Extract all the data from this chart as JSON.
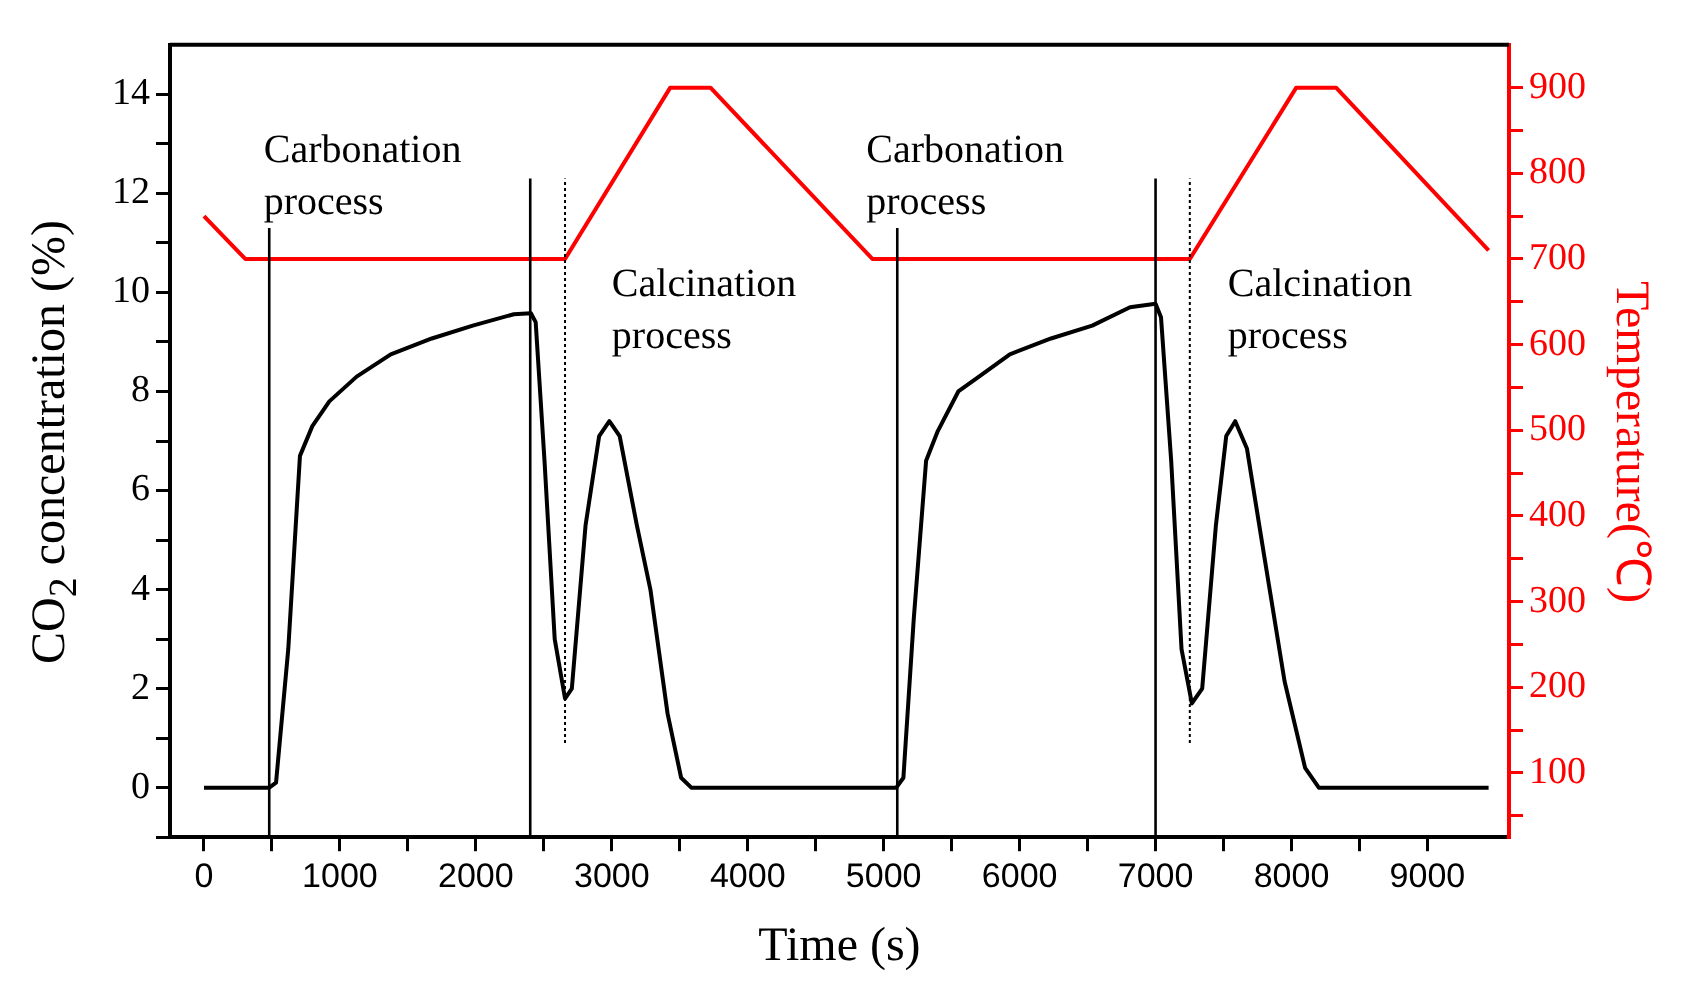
{
  "chart_data": {
    "type": "line",
    "xlabel": "Time (s)",
    "ylabel": "CO$_{2}$ concentration (%)",
    "y2label": "Temperature(℃)",
    "xlim": [
      -250,
      9600
    ],
    "xticks": [
      0,
      {
        "value": 500,
        "label": null
      },
      1000,
      {
        "value": 1500,
        "label": null
      },
      2000,
      {
        "value": 2500,
        "label": null
      },
      3000,
      {
        "value": 3500,
        "label": null
      },
      4000,
      {
        "value": 4500,
        "label": null
      },
      5000,
      {
        "value": 5500,
        "label": null
      },
      6000,
      {
        "value": 6500,
        "label": null
      },
      7000,
      {
        "value": 7500,
        "label": null
      },
      8000,
      {
        "value": 8500,
        "label": null
      },
      9000
    ],
    "ylim": [
      -1,
      15
    ],
    "yticks": [
      {
        "value": -1,
        "label": null
      },
      0,
      {
        "value": 1,
        "label": null
      },
      2,
      {
        "value": 3,
        "label": null
      },
      4,
      {
        "value": 5,
        "label": null
      },
      6,
      {
        "value": 7,
        "label": null
      },
      8,
      {
        "value": 9,
        "label": null
      },
      10,
      {
        "value": 11,
        "label": null
      },
      12,
      {
        "value": 13,
        "label": null
      },
      14
    ],
    "y2lim": [
      25,
      950
    ],
    "y2ticks": [
      {
        "value": 50,
        "label": null
      },
      100,
      {
        "value": 150,
        "label": null
      },
      200,
      {
        "value": 250,
        "label": null
      },
      300,
      {
        "value": 350,
        "label": null
      },
      400,
      {
        "value": 450,
        "label": null
      },
      500,
      {
        "value": 550,
        "label": null
      },
      600,
      {
        "value": 650,
        "label": null
      },
      700,
      {
        "value": 750,
        "label": null
      },
      800,
      {
        "value": 850,
        "label": null
      },
      900
    ],
    "series": [
      {
        "color": "#000000",
        "x": [
          0,
          480,
          530,
          620,
          706,
          797,
          922,
          1123,
          1374,
          1676,
          1977,
          2279,
          2405,
          2440,
          2505,
          2580,
          2656,
          2706,
          2807,
          2907,
          2982,
          3058,
          3184,
          3284,
          3410,
          3510,
          3585,
          5093,
          5145,
          5221,
          5312,
          5398,
          5549,
          5701,
          5928,
          6231,
          6534,
          6812,
          7000,
          7040,
          7115,
          7191,
          7267,
          7343,
          7444,
          7520,
          7586,
          7672,
          7798,
          7949,
          8100,
          8201,
          9450
        ],
        "values": [
          0,
          0,
          0.1,
          2.8,
          6.7,
          7.3,
          7.8,
          8.3,
          8.75,
          9.07,
          9.33,
          9.56,
          9.58,
          9.4,
          6.6,
          3.0,
          1.8,
          2.0,
          5.3,
          7.1,
          7.4,
          7.1,
          5.3,
          4.0,
          1.5,
          0.2,
          0,
          0,
          0.2,
          3.4,
          6.6,
          7.2,
          8.0,
          8.3,
          8.75,
          9.07,
          9.33,
          9.7,
          9.77,
          9.5,
          6.6,
          2.8,
          1.7,
          2.0,
          5.3,
          7.1,
          7.4,
          6.85,
          4.7,
          2.15,
          0.4,
          0,
          0
        ]
      },
      {
        "color": "#ff0000",
        "axis": "y2",
        "x": [
          0,
          304,
          2656,
          3430,
          3726,
          4917,
          7252,
          8035,
          8328,
          9450
        ],
        "values": [
          750,
          700,
          700,
          900,
          900,
          700,
          700,
          900,
          900,
          710
        ]
      }
    ],
    "ref_lines": [
      {
        "axis": "x",
        "value": 480,
        "color": "#000000",
        "line_style": "solid"
      },
      {
        "axis": "x",
        "value": 2400,
        "color": "#000000",
        "line_style": "solid"
      },
      {
        "axis": "x",
        "value": 2656,
        "color": "#000000",
        "line_style": "dotted"
      },
      {
        "axis": "x",
        "value": 5100,
        "color": "#000000",
        "line_style": "solid"
      },
      {
        "axis": "x",
        "value": 7000,
        "color": "#000000",
        "line_style": "solid"
      },
      {
        "axis": "x",
        "value": 7252,
        "color": "#000000",
        "line_style": "dotted"
      }
    ],
    "annotations": [
      "Carbonation process",
      "Calcination process",
      "Carbonation process",
      "Calcination process"
    ],
    "marker": "none",
    "line_style": "solid",
    "grid": false,
    "legend": false
  }
}
